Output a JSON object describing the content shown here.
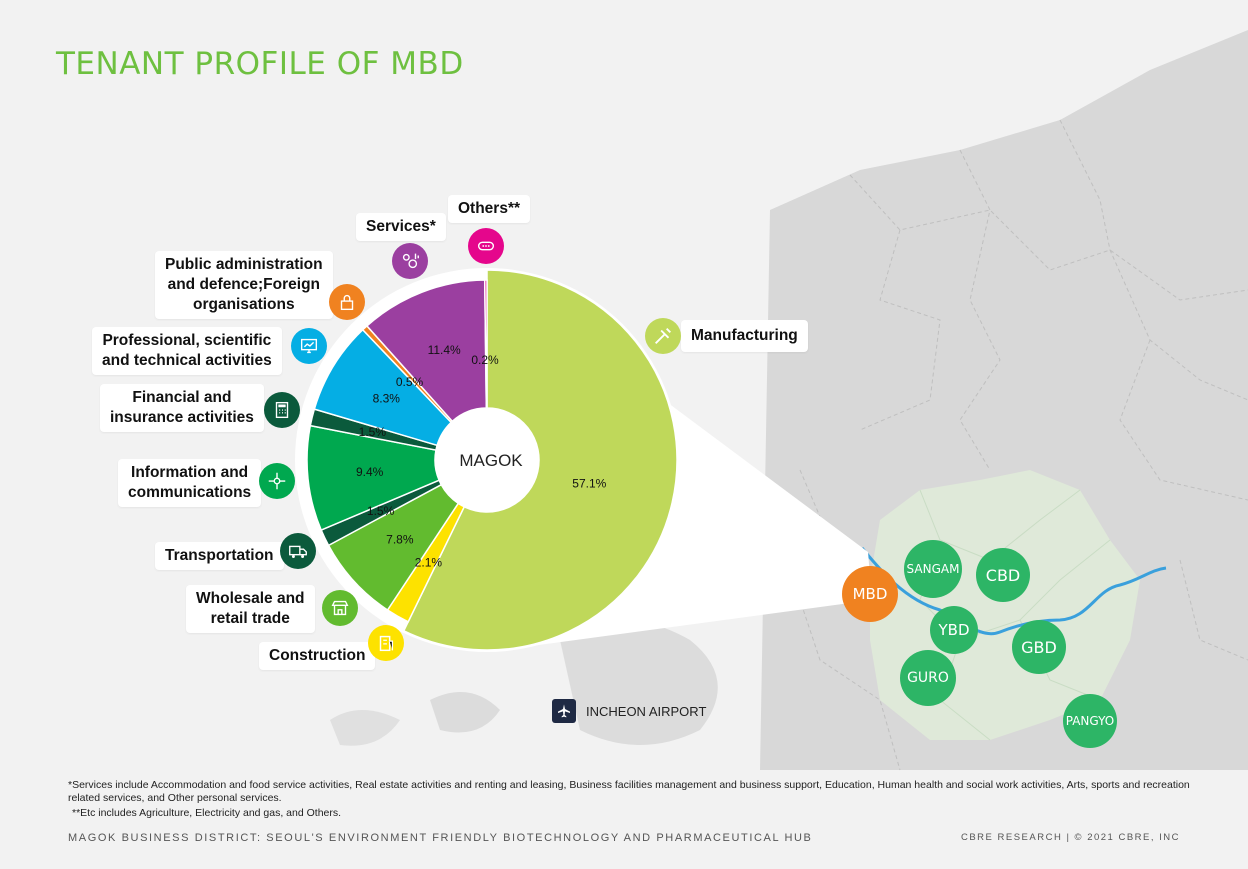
{
  "title": "TENANT PROFILE OF MBD",
  "chart_data": {
    "type": "pie",
    "title": "TENANT PROFILE OF MBD",
    "center_label": "MAGOK",
    "slices": [
      {
        "label": "Manufacturing",
        "value": 57.1,
        "value_label": "57.1%",
        "color": "#bfd85a"
      },
      {
        "label": "Construction",
        "value": 2.1,
        "value_label": "2.1%",
        "color": "#fde200"
      },
      {
        "label": "Wholesale and retail trade",
        "value": 7.8,
        "value_label": "7.8%",
        "color": "#62bb2f"
      },
      {
        "label": "Transportation",
        "value": 1.5,
        "value_label": "1.5%",
        "color": "#0b5a3c"
      },
      {
        "label": "Information and communications",
        "value": 9.4,
        "value_label": "9.4%",
        "color": "#00a84f"
      },
      {
        "label": "Financial and insurance activities",
        "value": 1.5,
        "value_label": "1.5%",
        "color": "#0b5a3c"
      },
      {
        "label": "Professional, scientific and technical activities",
        "value": 8.3,
        "value_label": "8.3%",
        "color": "#05aee4"
      },
      {
        "label": "Public administration and defence;Foreign organisations",
        "value": 0.5,
        "value_label": "0.5%",
        "color": "#f08220"
      },
      {
        "label": "Services*",
        "value": 11.4,
        "value_label": "11.4%",
        "color": "#9b3fa0"
      },
      {
        "label": "Others**",
        "value": 0.2,
        "value_label": "0.2%",
        "color": "#e5068c"
      }
    ]
  },
  "labels": {
    "manufacturing": "Manufacturing",
    "construction": "Construction",
    "wholesale": [
      "Wholesale and",
      "retail trade"
    ],
    "transportation": "Transportation",
    "information": [
      "Information and",
      "communications"
    ],
    "financial": [
      "Financial and",
      "insurance activities"
    ],
    "professional": [
      "Professional, scientific",
      "and technical activities"
    ],
    "public": [
      "Public administration",
      "and defence;Foreign",
      "organisations"
    ],
    "services": "Services*",
    "others": "Others**"
  },
  "icons": {
    "manufacturing": {
      "name": "tools-icon",
      "color": "#bfd85a"
    },
    "construction": {
      "name": "building-icon",
      "color": "#fde200"
    },
    "wholesale": {
      "name": "store-icon",
      "color": "#62bb2f"
    },
    "transportation": {
      "name": "truck-icon",
      "color": "#0b5a3c"
    },
    "information": {
      "name": "network-icon",
      "color": "#00a84f"
    },
    "financial": {
      "name": "calculator-icon",
      "color": "#0b5a3c"
    },
    "professional": {
      "name": "monitor-chart-icon",
      "color": "#05aee4"
    },
    "public": {
      "name": "lock-icon",
      "color": "#f08220"
    },
    "services": {
      "name": "service-gears-icon",
      "color": "#9b3fa0"
    },
    "others": {
      "name": "more-dots-icon",
      "color": "#e5068c"
    }
  },
  "map": {
    "districts": [
      "MBD",
      "SANGAM",
      "CBD",
      "YBD",
      "GBD",
      "GURO",
      "PANGYO"
    ],
    "airport": "INCHEON AIRPORT",
    "colors": {
      "mbd": "#f08220",
      "district": "#2db566",
      "river": "#3aa0dc",
      "land": "#dfe9d9"
    }
  },
  "footnotes": {
    "services": "*Services include Accommodation and food service activities, Real estate activities and renting and leasing, Business facilities management and business support, Education, Human health and social work activities, Arts, sports and recreation related services, and Other personal services.",
    "etc": "**Etc includes Agriculture, Electricity and gas, and Others."
  },
  "footer": {
    "left": "MAGOK BUSINESS DISTRICT: SEOUL'S ENVIRONMENT FRIENDLY BIOTECHNOLOGY AND PHARMACEUTICAL HUB",
    "right": "CBRE RESEARCH | © 2021 CBRE, INC"
  }
}
